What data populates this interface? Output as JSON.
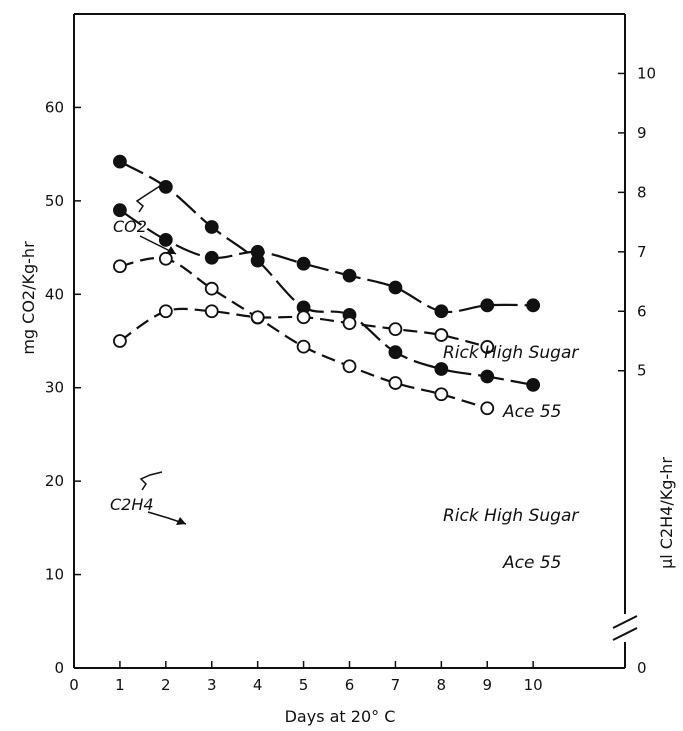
{
  "chart_data": {
    "type": "line",
    "xlabel": "Days at 20° C",
    "ylabel": "mg CO2/Kg-hr",
    "y2label": "µl C2H4/Kg-hr",
    "xlim": [
      0,
      12
    ],
    "ylim": [
      0,
      70
    ],
    "y2lim": [
      0,
      11
    ],
    "grid": false,
    "x_ticks": [
      0,
      1,
      2,
      3,
      4,
      5,
      6,
      7,
      8,
      9,
      10
    ],
    "y_ticks": [
      0,
      10,
      20,
      30,
      40,
      50,
      60
    ],
    "y2_ticks": [
      0,
      5,
      6,
      7,
      8,
      9,
      10
    ],
    "annotations": [
      "CO2",
      "C2H4"
    ],
    "series": [
      {
        "name": "Rick High Sugar",
        "gas": "CO2",
        "axis": "left",
        "marker": "filled",
        "x": [
          1,
          2,
          3,
          4,
          5,
          6,
          7,
          8,
          9,
          10
        ],
        "y": [
          54.2,
          51.5,
          47.2,
          43.6,
          38.6,
          37.8,
          33.8,
          32.0,
          31.2,
          30.3
        ]
      },
      {
        "name": "Ace 55",
        "gas": "CO2",
        "axis": "left",
        "marker": "open",
        "x": [
          1,
          2,
          3,
          4,
          5,
          6,
          7,
          8,
          9
        ],
        "y": [
          43.0,
          43.8,
          40.6,
          37.5,
          34.4,
          32.3,
          30.5,
          29.3,
          27.8
        ]
      },
      {
        "name": "Rick High Sugar",
        "gas": "C2H4",
        "axis": "right",
        "marker": "filled",
        "x": [
          1,
          2,
          3,
          4,
          5,
          6,
          7,
          8,
          9,
          10
        ],
        "y": [
          7.7,
          7.2,
          6.9,
          7.0,
          6.8,
          6.6,
          6.4,
          6.0,
          6.1,
          6.1
        ]
      },
      {
        "name": "Ace 55",
        "gas": "C2H4",
        "axis": "right",
        "marker": "open",
        "x": [
          1,
          2,
          3,
          4,
          5,
          6,
          7,
          8,
          9
        ],
        "y": [
          5.5,
          6.0,
          6.0,
          5.9,
          5.9,
          5.8,
          5.7,
          5.6,
          5.4
        ]
      }
    ]
  }
}
